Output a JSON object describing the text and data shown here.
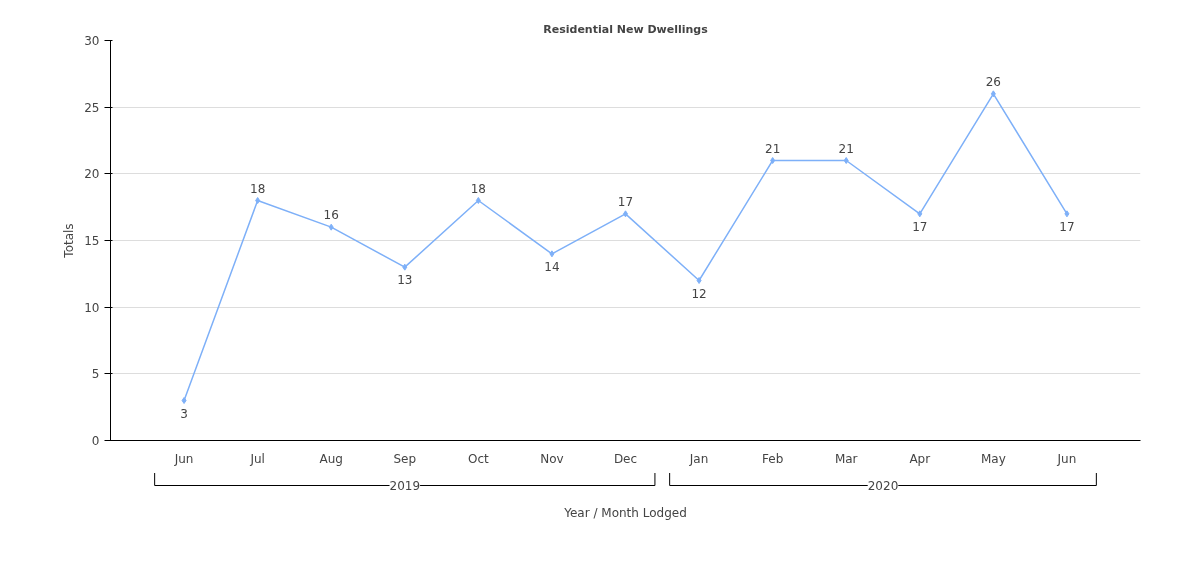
{
  "chart_data": {
    "type": "line",
    "title": "Residential New Dwellings",
    "xlabel": "Year / Month Lodged",
    "ylabel": "Totals",
    "categories": [
      "Jun",
      "Jul",
      "Aug",
      "Sep",
      "Oct",
      "Nov",
      "Dec",
      "Jan",
      "Feb",
      "Mar",
      "Apr",
      "May",
      "Jun"
    ],
    "series": [
      {
        "color": "#7eb0f8",
        "values": [
          3,
          18,
          16,
          13,
          18,
          14,
          17,
          12,
          21,
          21,
          17,
          26,
          17
        ]
      }
    ],
    "annotations": [
      "2019",
      "2020"
    ],
    "ylim": [
      0,
      30
    ],
    "yticks": [
      0,
      5,
      10,
      15,
      20,
      25,
      30
    ],
    "grid": "y",
    "data_labels": true,
    "marker": "diamond"
  }
}
